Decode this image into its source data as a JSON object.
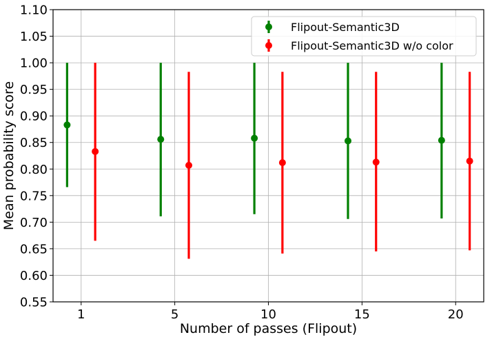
{
  "chart_data": {
    "type": "scatter",
    "title": "",
    "xlabel": "Number of passes (Flipout)",
    "ylabel": "Mean probability score",
    "categories": [
      "1",
      "5",
      "10",
      "15",
      "20"
    ],
    "x_offsets": [
      -0.15,
      0.15
    ],
    "ylim": [
      0.55,
      1.1
    ],
    "yticks": [
      "0.55",
      "0.60",
      "0.65",
      "0.70",
      "0.75",
      "0.80",
      "0.85",
      "0.90",
      "0.95",
      "1.00",
      "1.05",
      "1.10"
    ],
    "grid": true,
    "legend_position": "top-right",
    "series": [
      {
        "name": "Flipout-Semantic3D",
        "color": "#008000",
        "values": [
          0.883,
          0.856,
          0.858,
          0.853,
          0.854
        ],
        "lower": [
          0.766,
          0.711,
          0.715,
          0.706,
          0.707
        ],
        "upper": [
          1.0,
          1.0,
          1.0,
          1.0,
          1.0
        ]
      },
      {
        "name": "Flipout-Semantic3D w/o color",
        "color": "#ff0000",
        "values": [
          0.833,
          0.807,
          0.812,
          0.813,
          0.815
        ],
        "lower": [
          0.665,
          0.631,
          0.641,
          0.645,
          0.647
        ],
        "upper": [
          1.0,
          0.983,
          0.983,
          0.983,
          0.983
        ]
      }
    ]
  }
}
